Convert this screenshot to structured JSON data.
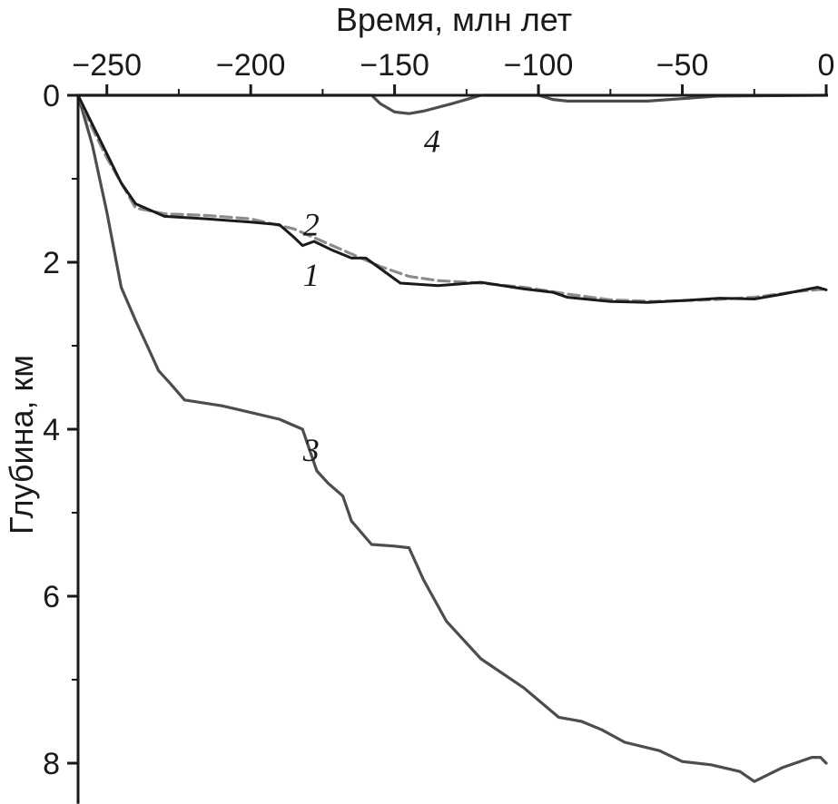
{
  "chart_data": {
    "type": "line",
    "title": "",
    "xlabel": "Время, млн лет",
    "ylabel": "Глубина, км",
    "xlim": [
      -260,
      0
    ],
    "ylim": [
      0,
      8.4
    ],
    "y_inverted": true,
    "x_axis_position": "top",
    "grid": false,
    "x_ticks": [
      -250,
      -200,
      -150,
      -100,
      -50,
      0
    ],
    "x_tick_labels": [
      "−250",
      "−200",
      "−150",
      "−100",
      "−50",
      "0"
    ],
    "y_ticks": [
      0,
      2,
      4,
      6,
      8
    ],
    "y_tick_labels": [
      "0",
      "2",
      "4",
      "6",
      "8"
    ],
    "colors": {
      "axis": "#1a1a1a",
      "series_1": "#1a1a1a",
      "series_2": "#8c8c8c",
      "series_3": "#4d4d4d",
      "series_4": "#4d4d4d"
    },
    "series": [
      {
        "label": "1",
        "style": "solid",
        "points": [
          [
            -260,
            0
          ],
          [
            -255,
            0.35
          ],
          [
            -250,
            0.7
          ],
          [
            -245,
            1.05
          ],
          [
            -240,
            1.3
          ],
          [
            -230,
            1.45
          ],
          [
            -215,
            1.48
          ],
          [
            -200,
            1.52
          ],
          [
            -190,
            1.55
          ],
          [
            -185,
            1.7
          ],
          [
            -182,
            1.8
          ],
          [
            -178,
            1.75
          ],
          [
            -172,
            1.85
          ],
          [
            -165,
            1.95
          ],
          [
            -160,
            1.95
          ],
          [
            -148,
            2.25
          ],
          [
            -135,
            2.28
          ],
          [
            -120,
            2.24
          ],
          [
            -105,
            2.32
          ],
          [
            -95,
            2.36
          ],
          [
            -90,
            2.42
          ],
          [
            -75,
            2.47
          ],
          [
            -62,
            2.48
          ],
          [
            -50,
            2.46
          ],
          [
            -37,
            2.43
          ],
          [
            -25,
            2.44
          ],
          [
            -15,
            2.38
          ],
          [
            -3,
            2.3
          ],
          [
            0,
            2.33
          ]
        ]
      },
      {
        "label": "2",
        "style": "dashed",
        "points": [
          [
            -260,
            0
          ],
          [
            -255,
            0.4
          ],
          [
            -250,
            0.75
          ],
          [
            -245,
            1.05
          ],
          [
            -240,
            1.35
          ],
          [
            -230,
            1.42
          ],
          [
            -215,
            1.44
          ],
          [
            -200,
            1.48
          ],
          [
            -185,
            1.6
          ],
          [
            -175,
            1.75
          ],
          [
            -165,
            1.9
          ],
          [
            -155,
            2.05
          ],
          [
            -145,
            2.17
          ],
          [
            -135,
            2.22
          ],
          [
            -120,
            2.25
          ],
          [
            -105,
            2.3
          ],
          [
            -90,
            2.38
          ],
          [
            -75,
            2.45
          ],
          [
            -60,
            2.47
          ],
          [
            -40,
            2.45
          ],
          [
            -25,
            2.42
          ],
          [
            -10,
            2.35
          ],
          [
            0,
            2.32
          ]
        ]
      },
      {
        "label": "3",
        "style": "solid",
        "points": [
          [
            -260,
            0
          ],
          [
            -255,
            0.6
          ],
          [
            -250,
            1.4
          ],
          [
            -245,
            2.3
          ],
          [
            -240,
            2.7
          ],
          [
            -236,
            3.0
          ],
          [
            -232,
            3.3
          ],
          [
            -228,
            3.45
          ],
          [
            -223,
            3.65
          ],
          [
            -210,
            3.72
          ],
          [
            -200,
            3.8
          ],
          [
            -190,
            3.88
          ],
          [
            -182,
            4.0
          ],
          [
            -177,
            4.5
          ],
          [
            -173,
            4.65
          ],
          [
            -168,
            4.8
          ],
          [
            -165,
            5.1
          ],
          [
            -158,
            5.38
          ],
          [
            -150,
            5.4
          ],
          [
            -145,
            5.42
          ],
          [
            -140,
            5.8
          ],
          [
            -132,
            6.3
          ],
          [
            -120,
            6.75
          ],
          [
            -105,
            7.1
          ],
          [
            -93,
            7.45
          ],
          [
            -85,
            7.5
          ],
          [
            -78,
            7.6
          ],
          [
            -70,
            7.75
          ],
          [
            -58,
            7.85
          ],
          [
            -50,
            7.98
          ],
          [
            -40,
            8.02
          ],
          [
            -30,
            8.1
          ],
          [
            -25,
            8.22
          ],
          [
            -15,
            8.05
          ],
          [
            -5,
            7.93
          ],
          [
            -2,
            7.93
          ],
          [
            0,
            8.0
          ]
        ]
      },
      {
        "label": "4",
        "style": "solid",
        "points": [
          [
            -260,
            0
          ],
          [
            -158,
            0
          ],
          [
            -155,
            0.1
          ],
          [
            -150,
            0.2
          ],
          [
            -145,
            0.22
          ],
          [
            -140,
            0.19
          ],
          [
            -130,
            0.1
          ],
          [
            -120,
            0.0
          ],
          [
            -100,
            0.0
          ],
          [
            -95,
            0.05
          ],
          [
            -90,
            0.07
          ],
          [
            -62,
            0.07
          ],
          [
            -50,
            0.04
          ],
          [
            -38,
            0.01
          ],
          [
            0,
            0.0
          ]
        ]
      }
    ]
  }
}
